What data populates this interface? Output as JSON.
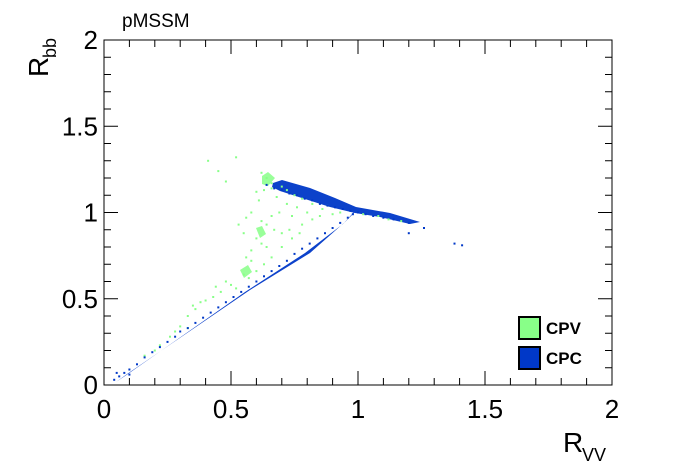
{
  "chart_data": {
    "type": "scatter",
    "title": "pMSSM",
    "xlabel_main": "R",
    "xlabel_sub": "VV",
    "ylabel_main": "R",
    "ylabel_sub": "bb",
    "xlim": [
      0,
      2
    ],
    "ylim": [
      0,
      2
    ],
    "x_ticks": [
      0,
      0.5,
      1,
      1.5,
      2
    ],
    "x_tick_labels": [
      "0",
      "0.5",
      "1",
      "1.5",
      "2"
    ],
    "y_ticks": [
      0,
      0.5,
      1,
      1.5,
      2
    ],
    "y_tick_labels": [
      "0",
      "0.5",
      "1",
      "1.5",
      "2"
    ],
    "grid": false,
    "legend_position": "bottom-right",
    "series": [
      {
        "name": "CPV",
        "color": "#88ff88",
        "points": [
          [
            0.41,
            1.3
          ],
          [
            0.52,
            1.32
          ],
          [
            0.45,
            1.24
          ],
          [
            0.48,
            1.18
          ],
          [
            0.62,
            1.23
          ],
          [
            0.64,
            1.2
          ],
          [
            0.66,
            1.17
          ],
          [
            0.63,
            1.13
          ],
          [
            0.7,
            1.15
          ],
          [
            0.72,
            1.13
          ],
          [
            0.75,
            1.1
          ],
          [
            0.78,
            1.08
          ],
          [
            0.82,
            1.05
          ],
          [
            0.88,
            1.04
          ],
          [
            0.68,
            1.09
          ],
          [
            0.72,
            1.05
          ],
          [
            0.76,
            1.03
          ],
          [
            0.8,
            1.0
          ],
          [
            0.85,
            0.98
          ],
          [
            0.9,
            0.99
          ],
          [
            0.93,
            1.0
          ],
          [
            1.02,
            0.99
          ],
          [
            1.08,
            0.98
          ],
          [
            1.12,
            0.96
          ],
          [
            1.17,
            0.95
          ],
          [
            0.62,
            0.95
          ],
          [
            0.64,
            0.93
          ],
          [
            0.67,
            0.9
          ],
          [
            0.7,
            0.88
          ],
          [
            0.73,
            0.9
          ],
          [
            0.78,
            0.93
          ],
          [
            0.6,
            0.85
          ],
          [
            0.62,
            0.82
          ],
          [
            0.64,
            0.8
          ],
          [
            0.56,
            0.74
          ],
          [
            0.58,
            0.72
          ],
          [
            0.55,
            0.64
          ],
          [
            0.57,
            0.62
          ],
          [
            0.6,
            0.66
          ],
          [
            0.63,
            0.7
          ],
          [
            0.48,
            0.6
          ],
          [
            0.5,
            0.58
          ],
          [
            0.52,
            0.56
          ],
          [
            0.46,
            0.54
          ],
          [
            0.43,
            0.51
          ],
          [
            0.4,
            0.49
          ],
          [
            0.36,
            0.44
          ],
          [
            0.33,
            0.4
          ],
          [
            0.3,
            0.34
          ],
          [
            0.28,
            0.31
          ],
          [
            0.33,
            0.33
          ],
          [
            0.26,
            0.28
          ],
          [
            0.22,
            0.23
          ],
          [
            0.2,
            0.2
          ],
          [
            0.16,
            0.17
          ],
          [
            0.58,
            1.0
          ],
          [
            0.56,
            0.97
          ],
          [
            0.53,
            0.93
          ],
          [
            0.55,
            0.88
          ],
          [
            0.58,
            0.78
          ],
          [
            0.66,
            0.98
          ],
          [
            0.69,
            1.0
          ],
          [
            0.74,
            0.98
          ],
          [
            0.82,
            0.96
          ],
          [
            0.86,
            1.02
          ],
          [
            0.35,
            0.46
          ],
          [
            0.38,
            0.48
          ],
          [
            0.44,
            0.57
          ],
          [
            0.66,
            0.74
          ],
          [
            0.7,
            0.8
          ],
          [
            0.74,
            0.85
          ],
          [
            0.77,
            0.88
          ],
          [
            0.6,
            1.12
          ],
          [
            0.61,
            1.07
          ],
          [
            0.66,
            1.14
          ]
        ]
      },
      {
        "name": "CPC",
        "color": "#0038c8",
        "points": [
          [
            0.04,
            0.03
          ],
          [
            0.06,
            0.05
          ],
          [
            0.08,
            0.07
          ],
          [
            0.1,
            0.09
          ],
          [
            0.13,
            0.12
          ],
          [
            0.16,
            0.16
          ],
          [
            0.19,
            0.19
          ],
          [
            0.22,
            0.22
          ],
          [
            0.25,
            0.25
          ],
          [
            0.28,
            0.28
          ],
          [
            0.3,
            0.31
          ],
          [
            0.33,
            0.33
          ],
          [
            0.36,
            0.36
          ],
          [
            0.39,
            0.39
          ],
          [
            0.42,
            0.42
          ],
          [
            0.45,
            0.45
          ],
          [
            0.48,
            0.48
          ],
          [
            0.51,
            0.51
          ],
          [
            0.54,
            0.54
          ],
          [
            0.57,
            0.57
          ],
          [
            0.6,
            0.6
          ],
          [
            0.63,
            0.63
          ],
          [
            0.66,
            0.66
          ],
          [
            0.69,
            0.69
          ],
          [
            0.72,
            0.72
          ],
          [
            0.75,
            0.76
          ],
          [
            0.78,
            0.79
          ],
          [
            0.81,
            0.82
          ],
          [
            0.84,
            0.85
          ],
          [
            0.87,
            0.88
          ],
          [
            0.9,
            0.91
          ],
          [
            0.93,
            0.94
          ],
          [
            0.96,
            0.97
          ],
          [
            0.98,
            0.99
          ],
          [
            0.64,
            1.16
          ],
          [
            0.67,
            1.14
          ],
          [
            0.7,
            1.13
          ],
          [
            0.73,
            1.11
          ],
          [
            0.76,
            1.1
          ],
          [
            0.79,
            1.08
          ],
          [
            0.82,
            1.07
          ],
          [
            0.85,
            1.05
          ],
          [
            0.88,
            1.04
          ],
          [
            0.91,
            1.03
          ],
          [
            0.94,
            1.02
          ],
          [
            0.97,
            1.01
          ],
          [
            1.0,
            1.0
          ],
          [
            1.03,
            0.99
          ],
          [
            1.06,
            0.98
          ],
          [
            1.1,
            0.97
          ],
          [
            1.14,
            0.96
          ],
          [
            1.2,
            0.94
          ],
          [
            1.26,
            0.91
          ],
          [
            1.38,
            0.82
          ],
          [
            1.41,
            0.81
          ],
          [
            1.2,
            0.88
          ],
          [
            0.05,
            0.07
          ],
          [
            0.1,
            0.06
          ]
        ]
      }
    ]
  }
}
